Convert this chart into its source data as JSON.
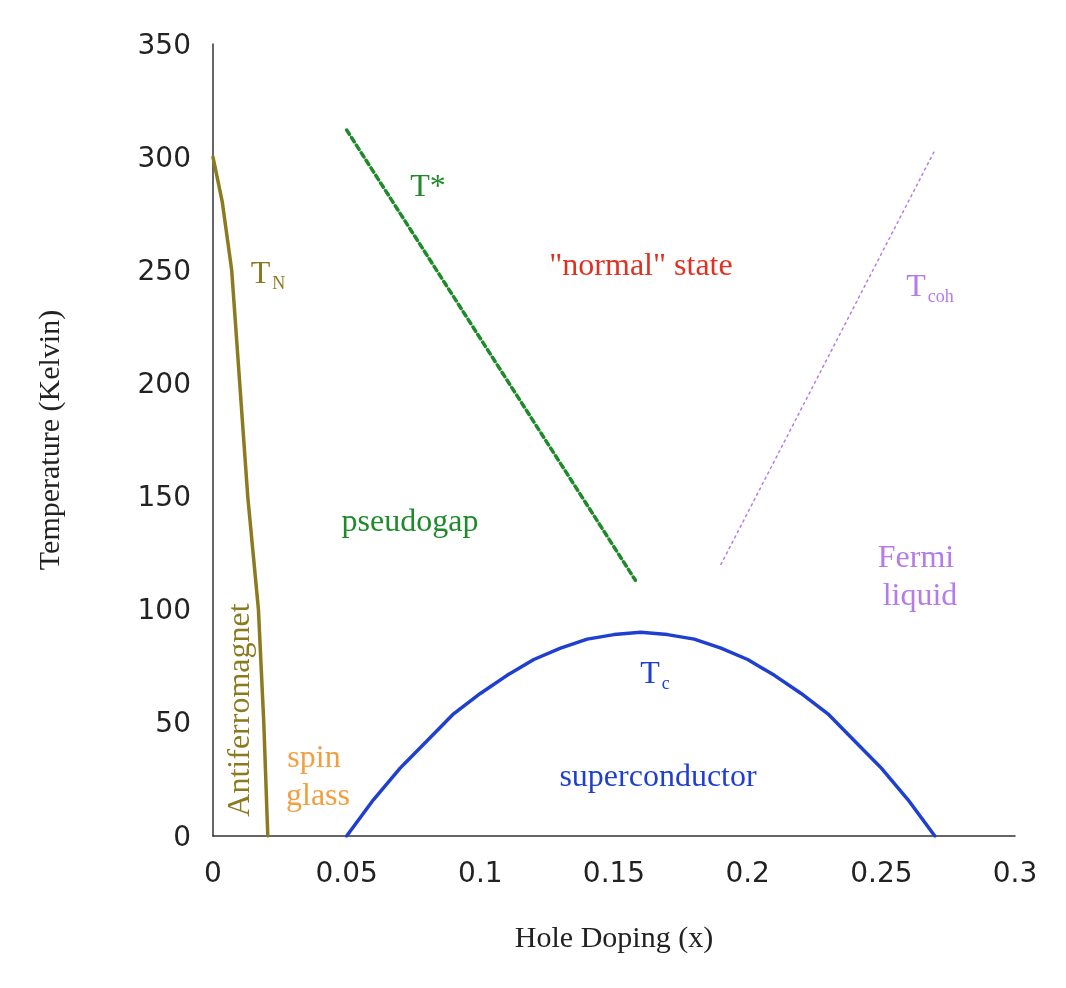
{
  "chart_data": {
    "type": "line",
    "xlabel": "Hole Doping (x)",
    "ylabel": "Temperature (Kelvin)",
    "xlim": [
      0,
      0.3
    ],
    "xticks": [
      0,
      0.05,
      0.1,
      0.15,
      0.2,
      0.25,
      0.3
    ],
    "ylim": [
      0,
      350
    ],
    "yticks": [
      0,
      50,
      100,
      150,
      200,
      250,
      300,
      350
    ],
    "grid": false,
    "marker": "none",
    "series": [
      {
        "color": "#8c7a1e",
        "line_style": "solid",
        "x": [
          0,
          0.0035,
          0.007,
          0.01,
          0.013,
          0.017,
          0.019,
          0.0205
        ],
        "values": [
          300,
          280,
          250,
          200,
          150,
          100,
          50,
          0
        ]
      },
      {
        "color": "#1e8a2a",
        "line_style": "dashed",
        "x": [
          0.05,
          0.158
        ],
        "values": [
          312,
          113
        ]
      },
      {
        "color": "#b57be8",
        "line_style": "dotted",
        "x": [
          0.19,
          0.27
        ],
        "values": [
          120,
          303
        ]
      },
      {
        "color": "#1f3fd0",
        "line_style": "solid",
        "x": [
          0.05,
          0.06,
          0.07,
          0.08,
          0.09,
          0.1,
          0.11,
          0.12,
          0.13,
          0.14,
          0.15,
          0.16,
          0.17,
          0.18,
          0.19,
          0.2,
          0.21,
          0.22,
          0.23,
          0.24,
          0.25,
          0.26,
          0.27
        ],
        "values": [
          0,
          16,
          30,
          42,
          54,
          63,
          71,
          78,
          83,
          87,
          89,
          90,
          89,
          87,
          83,
          78,
          71,
          63,
          54,
          42,
          30,
          16,
          0
        ]
      }
    ],
    "annotations": [
      "T$_{N}$",
      "T*",
      "\"normal\" state",
      "T$_{coh}$",
      "pseudogap",
      "Fermi liquid",
      "T$_{c}$",
      "superconductor",
      "Antiferromagnet",
      "spin glass"
    ]
  }
}
